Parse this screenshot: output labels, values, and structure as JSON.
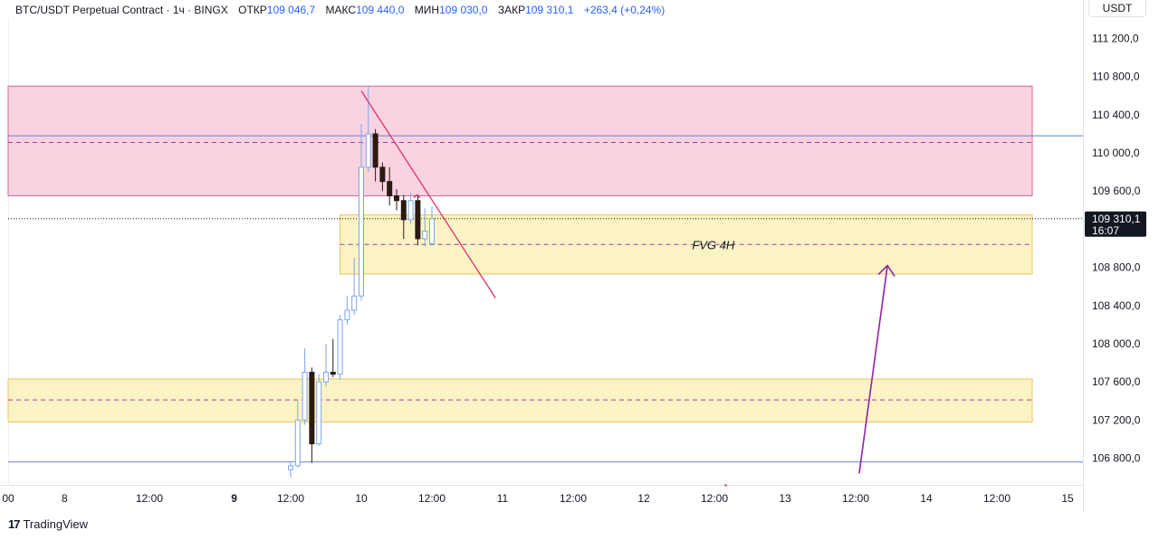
{
  "header": {
    "title": "BTC/USDT Perpetual Contract · 1ч · BINGX",
    "open_label": "ОТКР",
    "open_value": "109 046,7",
    "high_label": "МАКС",
    "high_value": "109 440,0",
    "low_label": "МИН",
    "low_value": "109 030,0",
    "close_label": "ЗАКР",
    "close_value": "109 310,1",
    "change": "+263,4 (+0,24%)"
  },
  "currency": "USDT",
  "last_price": {
    "value": "109 310,1",
    "countdown": "16:07"
  },
  "brand": "TradingView",
  "colors": {
    "up": "#7aa6ea",
    "down": "#2a1a12",
    "supply_zone": "#f7c5d6",
    "demand_zone": "#fbefb3",
    "trendline": "#e0306e",
    "arrow": "#8e24aa",
    "level_line": "#5b82d6"
  },
  "chart_data": {
    "type": "candlestick",
    "y_ticks": [
      "111 200,0",
      "110 800,0",
      "110 400,0",
      "110 000,0",
      "109 600,0",
      "108 800,0",
      "108 400,0",
      "108 000,0",
      "107 600,0",
      "107 200,0",
      "106 800,0"
    ],
    "ylim": [
      106600,
      111400
    ],
    "x_ticks": [
      {
        "t": 0,
        "label": "00"
      },
      {
        "t": 8,
        "label": "8"
      },
      {
        "t": 20,
        "label": "12:00"
      },
      {
        "t": 32,
        "label": "9",
        "bold": true
      },
      {
        "t": 40,
        "label": "12:00"
      },
      {
        "t": 50,
        "label": "10"
      },
      {
        "t": 60,
        "label": "12:00"
      },
      {
        "t": 70,
        "label": "11"
      },
      {
        "t": 80,
        "label": "12:00"
      },
      {
        "t": 90,
        "label": "12"
      },
      {
        "t": 100,
        "label": "12:00"
      },
      {
        "t": 110,
        "label": "13"
      },
      {
        "t": 120,
        "label": "12:00"
      },
      {
        "t": 130,
        "label": "14"
      },
      {
        "t": 140,
        "label": "12:00"
      },
      {
        "t": 150,
        "label": "15"
      }
    ],
    "candles": [
      {
        "t": 40,
        "o": 106680,
        "h": 106750,
        "l": 106600,
        "c": 106720
      },
      {
        "t": 41,
        "o": 106720,
        "h": 107400,
        "l": 106700,
        "c": 107200
      },
      {
        "t": 42,
        "o": 107200,
        "h": 107950,
        "l": 107150,
        "c": 107700
      },
      {
        "t": 43,
        "o": 107700,
        "h": 107750,
        "l": 106750,
        "c": 106950
      },
      {
        "t": 44,
        "o": 106950,
        "h": 107680,
        "l": 106930,
        "c": 107600
      },
      {
        "t": 45,
        "o": 107600,
        "h": 108000,
        "l": 107550,
        "c": 107700
      },
      {
        "t": 46,
        "o": 107700,
        "h": 108050,
        "l": 107650,
        "c": 107680
      },
      {
        "t": 47,
        "o": 107680,
        "h": 108300,
        "l": 107620,
        "c": 108250
      },
      {
        "t": 48,
        "o": 108250,
        "h": 108500,
        "l": 108200,
        "c": 108350
      },
      {
        "t": 49,
        "o": 108350,
        "h": 108900,
        "l": 108300,
        "c": 108500
      },
      {
        "t": 50,
        "o": 108500,
        "h": 110300,
        "l": 108450,
        "c": 109850
      },
      {
        "t": 51,
        "o": 109850,
        "h": 110700,
        "l": 109800,
        "c": 110200
      },
      {
        "t": 52,
        "o": 110200,
        "h": 110250,
        "l": 109700,
        "c": 109850
      },
      {
        "t": 53,
        "o": 109850,
        "h": 109900,
        "l": 109600,
        "c": 109700
      },
      {
        "t": 54,
        "o": 109700,
        "h": 109850,
        "l": 109450,
        "c": 109550
      },
      {
        "t": 55,
        "o": 109550,
        "h": 109620,
        "l": 109400,
        "c": 109500
      },
      {
        "t": 56,
        "o": 109500,
        "h": 109560,
        "l": 109100,
        "c": 109300
      },
      {
        "t": 57,
        "o": 109300,
        "h": 109580,
        "l": 109250,
        "c": 109500
      },
      {
        "t": 58,
        "o": 109500,
        "h": 109550,
        "l": 109030,
        "c": 109100
      },
      {
        "t": 59,
        "o": 109100,
        "h": 109420,
        "l": 109020,
        "c": 109180
      },
      {
        "t": 60,
        "o": 109046.7,
        "h": 109440,
        "l": 109030,
        "c": 109310.1
      }
    ],
    "zones": [
      {
        "name": "supply-zone",
        "t0": 0,
        "t1": 145,
        "top": 110700,
        "bottom": 109550,
        "mid": 110110,
        "fill": "#f9d3e0",
        "border": "#e0609a"
      },
      {
        "name": "fvg-4h-zone",
        "t0": 47,
        "t1": 145,
        "top": 109350,
        "bottom": 108730,
        "mid": 109040,
        "fill": "#fcf3c4",
        "border": "#e8c55a",
        "label": "FVG 4H"
      },
      {
        "name": "lower-demand-zone",
        "t0": 0,
        "t1": 145,
        "top": 107630,
        "bottom": 107180,
        "mid": 107410,
        "fill": "#fcf3c4",
        "border": "#e8c55a"
      }
    ],
    "levels": [
      110180,
      106760
    ],
    "trendline": {
      "t0": 50,
      "p0": 110650,
      "t1": 69,
      "p1": 108480
    },
    "arrow": {
      "t0": 120.5,
      "p0": 106640,
      "t1": 124.5,
      "p1": 108820
    }
  }
}
